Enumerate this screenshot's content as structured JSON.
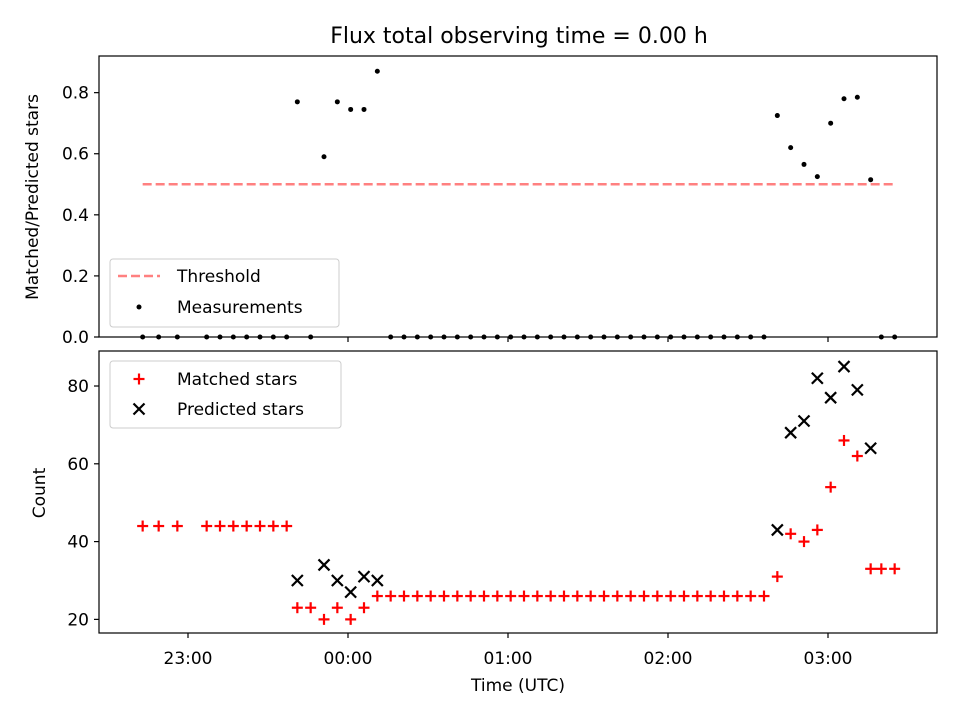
{
  "title": "Flux total observing time = 0.00 h",
  "chart_data": [
    {
      "type": "scatter",
      "ylabel": "Matched/Predicted stars",
      "ylim": [
        0,
        0.92
      ],
      "yticks": [
        0.0,
        0.2,
        0.4,
        0.6,
        0.8
      ],
      "ytick_labels": [
        "0.0",
        "0.2",
        "0.4",
        "0.6",
        "0.8"
      ],
      "xticks": [
        "00:00",
        "01:00",
        "02:00",
        "03:00"
      ],
      "legend": {
        "position": "lower-left"
      },
      "threshold": {
        "name": "Threshold",
        "x_start": "22:43",
        "x_end": "03:25",
        "value": 0.5,
        "color": "#ff8080"
      },
      "measurements": {
        "name": "Measurements",
        "color": "#000000",
        "points": [
          [
            "22:43",
            0
          ],
          [
            "22:49",
            0
          ],
          [
            "22:56",
            0
          ],
          [
            "23:07",
            0
          ],
          [
            "23:12",
            0
          ],
          [
            "23:17",
            0
          ],
          [
            "23:22",
            0
          ],
          [
            "23:27",
            0
          ],
          [
            "23:32",
            0
          ],
          [
            "23:37",
            0
          ],
          [
            "23:41",
            0.77
          ],
          [
            "23:46",
            0
          ],
          [
            "23:51",
            0.59
          ],
          [
            "23:56",
            0.77
          ],
          [
            "00:01",
            0.745
          ],
          [
            "00:06",
            0.745
          ],
          [
            "00:11",
            0.87
          ],
          [
            "00:16",
            0
          ],
          [
            "00:21",
            0
          ],
          [
            "00:26",
            0
          ],
          [
            "00:31",
            0
          ],
          [
            "00:36",
            0
          ],
          [
            "00:41",
            0
          ],
          [
            "00:46",
            0
          ],
          [
            "00:51",
            0
          ],
          [
            "00:56",
            0
          ],
          [
            "01:01",
            0
          ],
          [
            "01:06",
            0
          ],
          [
            "01:11",
            0
          ],
          [
            "01:16",
            0
          ],
          [
            "01:21",
            0
          ],
          [
            "01:26",
            0
          ],
          [
            "01:31",
            0
          ],
          [
            "01:36",
            0
          ],
          [
            "01:41",
            0
          ],
          [
            "01:46",
            0
          ],
          [
            "01:51",
            0
          ],
          [
            "01:56",
            0
          ],
          [
            "02:01",
            0
          ],
          [
            "02:06",
            0
          ],
          [
            "02:11",
            0
          ],
          [
            "02:16",
            0
          ],
          [
            "02:21",
            0
          ],
          [
            "02:26",
            0
          ],
          [
            "02:31",
            0
          ],
          [
            "02:36",
            0
          ],
          [
            "02:41",
            0.725
          ],
          [
            "02:46",
            0.62
          ],
          [
            "02:51",
            0.565
          ],
          [
            "02:56",
            0.525
          ],
          [
            "03:01",
            0.7
          ],
          [
            "03:06",
            0.78
          ],
          [
            "03:11",
            0.785
          ],
          [
            "03:16",
            0.515
          ],
          [
            "03:20",
            0
          ],
          [
            "03:25",
            0
          ]
        ]
      }
    },
    {
      "type": "scatter",
      "xlabel": "Time (UTC)",
      "ylabel": "Count",
      "ylim": [
        16.5,
        89
      ],
      "yticks": [
        20,
        40,
        60,
        80
      ],
      "ytick_labels": [
        "20",
        "40",
        "60",
        "80"
      ],
      "xticks": [
        "23:00",
        "00:00",
        "01:00",
        "02:00",
        "03:00"
      ],
      "legend": {
        "position": "top-left"
      },
      "series": [
        {
          "name": "Matched stars",
          "marker": "plus",
          "color": "#ff0000",
          "points": [
            [
              "22:43",
              44
            ],
            [
              "22:49",
              44
            ],
            [
              "22:56",
              44
            ],
            [
              "23:07",
              44
            ],
            [
              "23:12",
              44
            ],
            [
              "23:17",
              44
            ],
            [
              "23:22",
              44
            ],
            [
              "23:27",
              44
            ],
            [
              "23:32",
              44
            ],
            [
              "23:37",
              44
            ],
            [
              "23:41",
              23
            ],
            [
              "23:46",
              23
            ],
            [
              "23:51",
              20
            ],
            [
              "23:56",
              23
            ],
            [
              "00:01",
              20
            ],
            [
              "00:06",
              23
            ],
            [
              "00:11",
              26
            ],
            [
              "00:16",
              26
            ],
            [
              "00:21",
              26
            ],
            [
              "00:26",
              26
            ],
            [
              "00:31",
              26
            ],
            [
              "00:36",
              26
            ],
            [
              "00:41",
              26
            ],
            [
              "00:46",
              26
            ],
            [
              "00:51",
              26
            ],
            [
              "00:56",
              26
            ],
            [
              "01:01",
              26
            ],
            [
              "01:06",
              26
            ],
            [
              "01:11",
              26
            ],
            [
              "01:16",
              26
            ],
            [
              "01:21",
              26
            ],
            [
              "01:26",
              26
            ],
            [
              "01:31",
              26
            ],
            [
              "01:36",
              26
            ],
            [
              "01:41",
              26
            ],
            [
              "01:46",
              26
            ],
            [
              "01:51",
              26
            ],
            [
              "01:56",
              26
            ],
            [
              "02:01",
              26
            ],
            [
              "02:06",
              26
            ],
            [
              "02:11",
              26
            ],
            [
              "02:16",
              26
            ],
            [
              "02:21",
              26
            ],
            [
              "02:26",
              26
            ],
            [
              "02:31",
              26
            ],
            [
              "02:36",
              26
            ],
            [
              "02:41",
              31
            ],
            [
              "02:46",
              42
            ],
            [
              "02:51",
              40
            ],
            [
              "02:56",
              43
            ],
            [
              "03:01",
              54
            ],
            [
              "03:06",
              66
            ],
            [
              "03:11",
              62
            ],
            [
              "03:16",
              33
            ],
            [
              "03:20",
              33
            ],
            [
              "03:25",
              33
            ]
          ]
        },
        {
          "name": "Predicted stars",
          "marker": "x",
          "color": "#000000",
          "points": [
            [
              "23:41",
              30
            ],
            [
              "23:51",
              34
            ],
            [
              "23:56",
              30
            ],
            [
              "00:01",
              27
            ],
            [
              "00:06",
              31
            ],
            [
              "00:11",
              30
            ],
            [
              "02:41",
              43
            ],
            [
              "02:46",
              68
            ],
            [
              "02:51",
              71
            ],
            [
              "02:56",
              82
            ],
            [
              "03:01",
              77
            ],
            [
              "03:06",
              85
            ],
            [
              "03:11",
              79
            ],
            [
              "03:16",
              64
            ]
          ]
        }
      ]
    }
  ]
}
